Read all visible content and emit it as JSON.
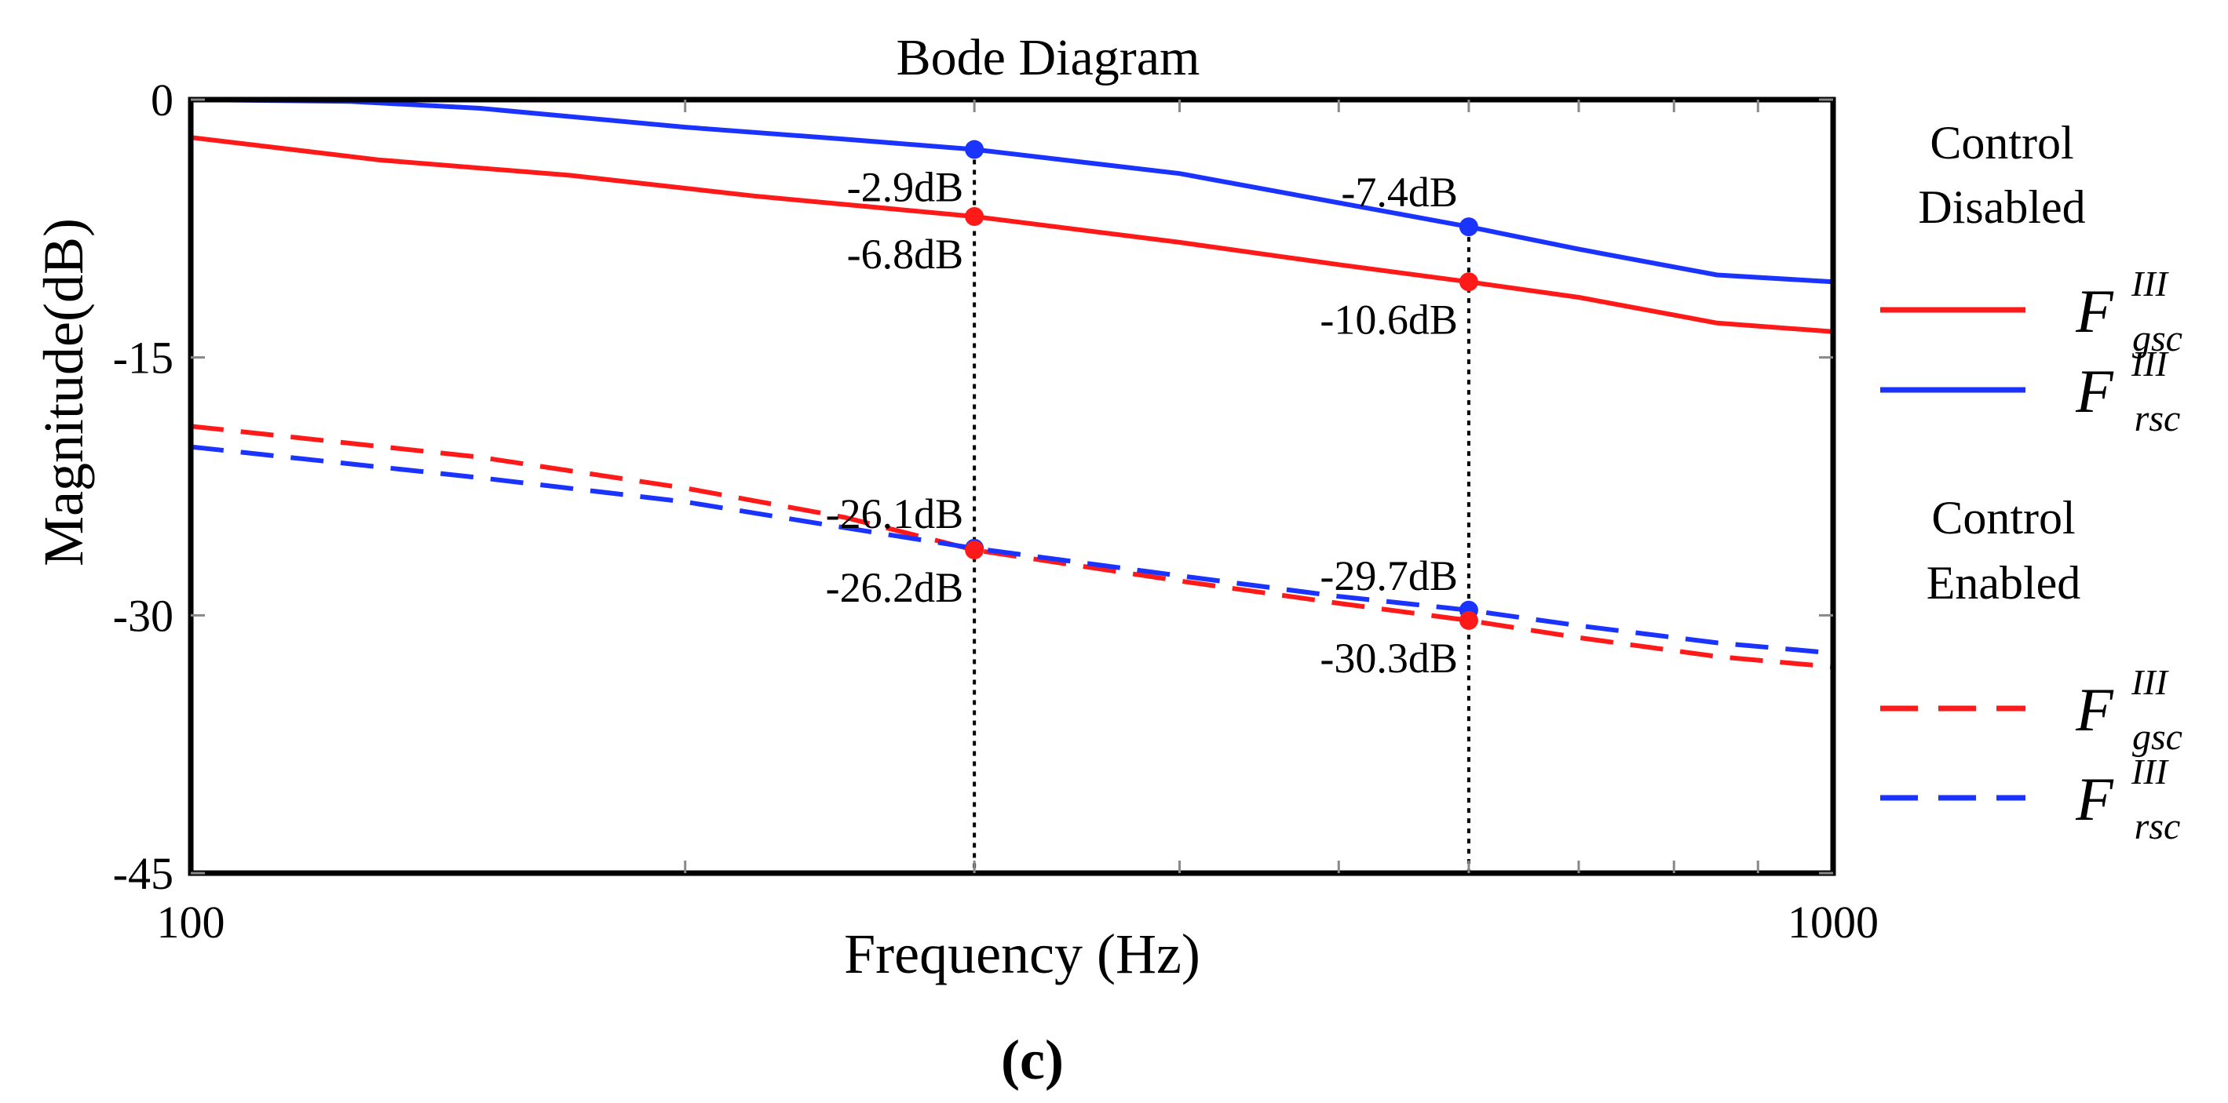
{
  "chart_data": {
    "type": "line",
    "title": "Bode Diagram",
    "xlabel": "Frequency  (Hz)",
    "ylabel": "Magnitude(dB)",
    "xscale": "log",
    "xlim": [
      100,
      1000
    ],
    "ylim": [
      -45,
      0
    ],
    "xticks": [
      100,
      1000
    ],
    "xtick_labels": [
      "100",
      "1000"
    ],
    "yticks": [
      0,
      -15,
      -30,
      -45
    ],
    "ytick_labels": [
      "0",
      "-15",
      "-30",
      "-45"
    ],
    "panel_label": "(c)",
    "legend": {
      "group_disabled": "Control Disabled",
      "group_enabled": "Control Enabled",
      "symbol": "F",
      "superscript": "III",
      "sub_gsc": "gsc",
      "sub_rsc": "rsc"
    },
    "series": [
      {
        "name": "F_gsc^III (Control Disabled)",
        "color": "#ff1a1a",
        "dash": "solid",
        "x": [
          100,
          130,
          170,
          220,
          300,
          400,
          500,
          600,
          700,
          850,
          1000
        ],
        "y": [
          -2.2,
          -3.5,
          -4.4,
          -5.6,
          -6.8,
          -8.3,
          -9.6,
          -10.6,
          -11.5,
          -13.0,
          -13.5
        ]
      },
      {
        "name": "F_rsc^III (Control Disabled)",
        "color": "#1a33ff",
        "dash": "solid",
        "x": [
          100,
          125,
          150,
          200,
          250,
          300,
          400,
          500,
          600,
          700,
          850,
          1000
        ],
        "y": [
          0,
          -0.1,
          -0.5,
          -1.6,
          -2.3,
          -2.9,
          -4.3,
          -6.0,
          -7.4,
          -8.7,
          -10.2,
          -10.6
        ]
      },
      {
        "name": "F_gsc^III (Control Enabled)",
        "color": "#ff1a1a",
        "dash": "dashed",
        "x": [
          100,
          150,
          200,
          250,
          300,
          400,
          500,
          600,
          700,
          850,
          1000
        ],
        "y": [
          -19.0,
          -20.8,
          -22.6,
          -24.3,
          -26.2,
          -28.0,
          -29.3,
          -30.3,
          -31.3,
          -32.4,
          -33.0
        ]
      },
      {
        "name": "F_rsc^III (Control Enabled)",
        "color": "#1a33ff",
        "dash": "dashed",
        "x": [
          100,
          150,
          200,
          250,
          300,
          400,
          500,
          600,
          700,
          850,
          1000
        ],
        "y": [
          -20.2,
          -22.0,
          -23.4,
          -24.9,
          -26.1,
          -27.7,
          -28.9,
          -29.7,
          -30.6,
          -31.6,
          -32.2
        ]
      }
    ],
    "markers": [
      {
        "x": 300,
        "y": -2.9,
        "label": "-2.9dB",
        "color": "#1a33ff",
        "label_pos": "below-left"
      },
      {
        "x": 300,
        "y": -6.8,
        "label": "-6.8dB",
        "color": "#ff1a1a",
        "label_pos": "below-left"
      },
      {
        "x": 300,
        "y": -26.1,
        "label": "-26.1dB",
        "color": "#1a33ff",
        "label_pos": "above-left"
      },
      {
        "x": 300,
        "y": -26.2,
        "label": "-26.2dB",
        "color": "#ff1a1a",
        "label_pos": "below-left"
      },
      {
        "x": 600,
        "y": -7.4,
        "label": "-7.4dB",
        "color": "#1a33ff",
        "label_pos": "above-left"
      },
      {
        "x": 600,
        "y": -10.6,
        "label": "-10.6dB",
        "color": "#ff1a1a",
        "label_pos": "below-left"
      },
      {
        "x": 600,
        "y": -29.7,
        "label": "-29.7dB",
        "color": "#1a33ff",
        "label_pos": "above-left"
      },
      {
        "x": 600,
        "y": -30.3,
        "label": "-30.3dB",
        "color": "#ff1a1a",
        "label_pos": "below-left"
      }
    ],
    "vlines": [
      300,
      600
    ]
  }
}
